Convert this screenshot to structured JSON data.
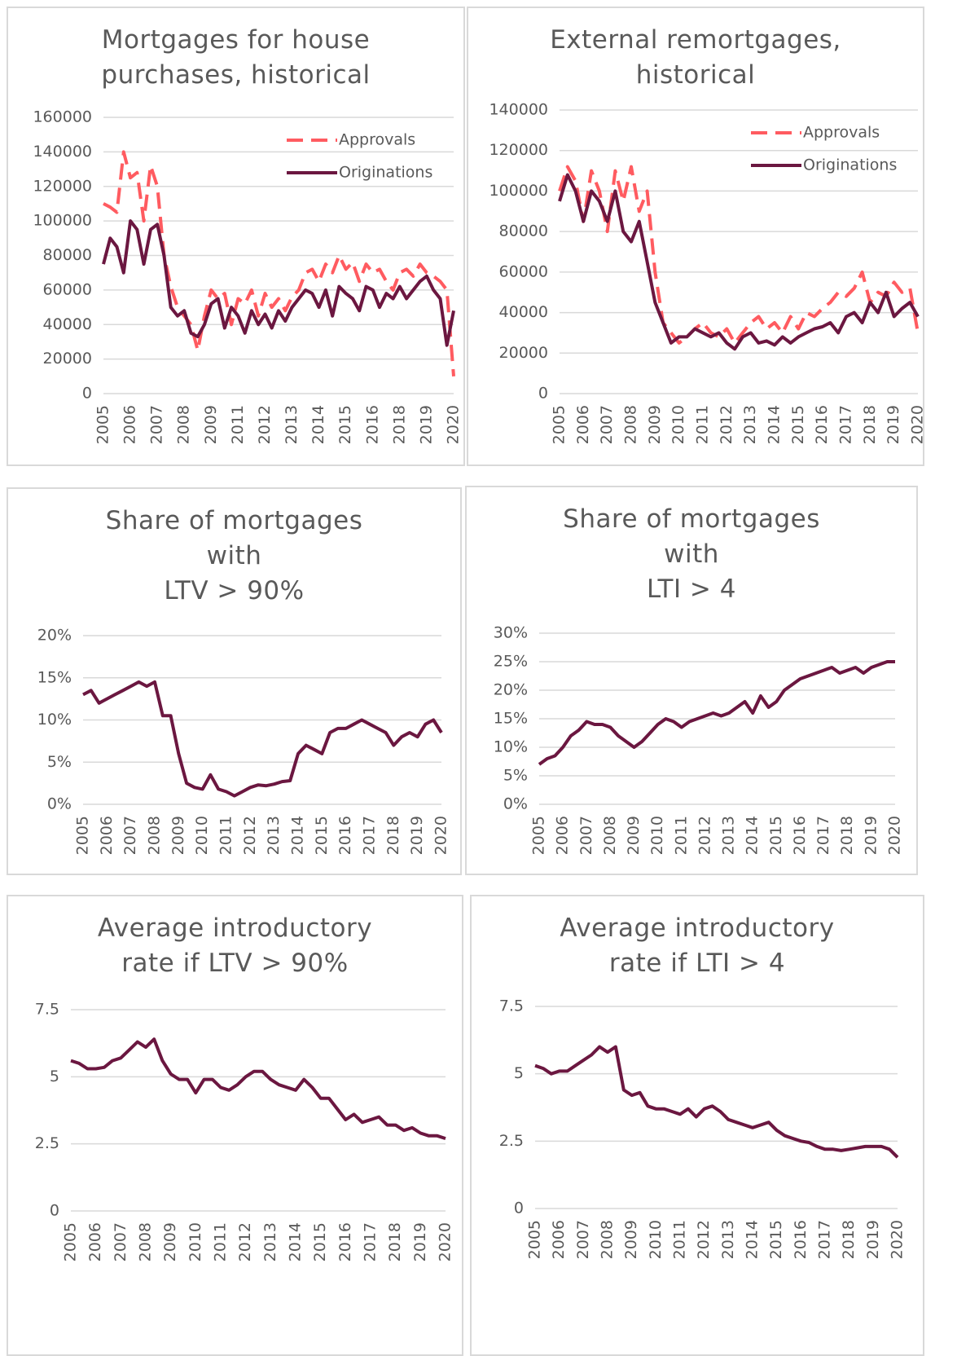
{
  "chart_data": [
    {
      "type": "line",
      "title": "Mortgages for house\npurchases, historical",
      "legend": "upper right",
      "categories": [
        "2005",
        null,
        null,
        null,
        "2006",
        null,
        null,
        null,
        "2007",
        null,
        null,
        null,
        "2008",
        null,
        null,
        null,
        "2009",
        null,
        null,
        null,
        "2011",
        null,
        null,
        null,
        "2012",
        null,
        null,
        null,
        "2013",
        null,
        null,
        null,
        "2014",
        null,
        null,
        null,
        "2015",
        null,
        null,
        null,
        "2016",
        null,
        null,
        null,
        "2018",
        null,
        null,
        null,
        "2019",
        null,
        null,
        null,
        "2020"
      ],
      "series": [
        {
          "name": "Approvals",
          "color": "#ff5b60",
          "line_style": "dashed",
          "values": [
            110000,
            108000,
            105000,
            140000,
            125000,
            128000,
            100000,
            132000,
            120000,
            80000,
            62000,
            50000,
            45000,
            40000,
            25000,
            45000,
            60000,
            55000,
            58000,
            40000,
            55000,
            52000,
            60000,
            45000,
            58000,
            50000,
            55000,
            48000,
            56000,
            60000,
            70000,
            72000,
            65000,
            75000,
            70000,
            80000,
            72000,
            76000,
            65000,
            75000,
            70000,
            72000,
            65000,
            60000,
            70000,
            72000,
            68000,
            75000,
            70000,
            68000,
            65000,
            60000,
            10000
          ]
        },
        {
          "name": "Originations",
          "color": "#6b1740",
          "line_style": "solid",
          "values": [
            75000,
            90000,
            85000,
            70000,
            100000,
            95000,
            75000,
            95000,
            98000,
            80000,
            50000,
            45000,
            48000,
            35000,
            33000,
            40000,
            52000,
            55000,
            38000,
            50000,
            45000,
            35000,
            48000,
            40000,
            46000,
            38000,
            48000,
            42000,
            50000,
            55000,
            60000,
            58000,
            50000,
            60000,
            45000,
            62000,
            58000,
            55000,
            48000,
            62000,
            60000,
            50000,
            58000,
            55000,
            62000,
            55000,
            60000,
            65000,
            68000,
            60000,
            55000,
            28000,
            48000
          ]
        }
      ],
      "ylim": [
        0,
        160000
      ],
      "yticks": [
        0,
        20000,
        40000,
        60000,
        80000,
        100000,
        120000,
        140000,
        160000
      ],
      "grid": true
    },
    {
      "type": "line",
      "title": "External remortgages,\nhistorical",
      "legend": "upper right",
      "categories": [
        "2005",
        null,
        null,
        "2006",
        null,
        null,
        "2007",
        null,
        null,
        "2008",
        null,
        null,
        "2009",
        null,
        null,
        "2010",
        null,
        null,
        "2011",
        null,
        null,
        "2012",
        null,
        null,
        "2013",
        null,
        null,
        "2014",
        null,
        null,
        "2015",
        null,
        null,
        "2016",
        null,
        null,
        "2017",
        null,
        null,
        "2018",
        null,
        null,
        "2019",
        null,
        null,
        "2020"
      ],
      "series": [
        {
          "name": "Approvals",
          "color": "#ff5b60",
          "line_style": "dashed",
          "values": [
            100000,
            112000,
            105000,
            85000,
            110000,
            100000,
            80000,
            110000,
            95000,
            112000,
            90000,
            100000,
            60000,
            35000,
            30000,
            25000,
            28000,
            32000,
            35000,
            30000,
            28000,
            32000,
            25000,
            30000,
            35000,
            38000,
            32000,
            35000,
            30000,
            38000,
            32000,
            40000,
            38000,
            42000,
            45000,
            50000,
            48000,
            52000,
            60000,
            45000,
            50000,
            48000,
            55000,
            50000,
            52000,
            30000
          ]
        },
        {
          "name": "Originations",
          "color": "#6b1740",
          "line_style": "solid",
          "values": [
            95000,
            108000,
            100000,
            85000,
            100000,
            95000,
            85000,
            100000,
            80000,
            75000,
            85000,
            65000,
            45000,
            35000,
            25000,
            28000,
            28000,
            32000,
            30000,
            28000,
            30000,
            25000,
            22000,
            28000,
            30000,
            25000,
            26000,
            24000,
            28000,
            25000,
            28000,
            30000,
            32000,
            33000,
            35000,
            30000,
            38000,
            40000,
            35000,
            45000,
            40000,
            50000,
            38000,
            42000,
            45000,
            38000
          ]
        }
      ],
      "ylim": [
        0,
        140000
      ],
      "yticks": [
        0,
        20000,
        40000,
        60000,
        80000,
        100000,
        120000,
        140000
      ],
      "grid": true
    },
    {
      "type": "line",
      "title": "Share of mortgages\nwith\nLTV > 90%",
      "categories": [
        "2005",
        null,
        null,
        "2006",
        null,
        null,
        "2007",
        null,
        null,
        "2008",
        null,
        null,
        "2009",
        null,
        null,
        "2010",
        null,
        null,
        "2011",
        null,
        null,
        "2012",
        null,
        null,
        "2013",
        null,
        null,
        "2014",
        null,
        null,
        "2015",
        null,
        null,
        "2016",
        null,
        null,
        "2017",
        null,
        null,
        "2018",
        null,
        null,
        "2019",
        null,
        null,
        "2020"
      ],
      "color": "#6b1740",
      "values": [
        13,
        13.5,
        12,
        12.5,
        13,
        13.5,
        14,
        14.5,
        14,
        14.5,
        10.5,
        10.5,
        6,
        2.5,
        2,
        1.8,
        3.5,
        1.8,
        1.5,
        1,
        1.5,
        2,
        2.3,
        2.2,
        2.4,
        2.7,
        2.8,
        6,
        7,
        6.5,
        6,
        8.5,
        9,
        9,
        9.5,
        10,
        9.5,
        9,
        8.5,
        7,
        8,
        8.5,
        8,
        9.5,
        10,
        8.5
      ],
      "ylim": [
        0,
        20
      ],
      "yticks": [
        {
          "value": 0,
          "label": "0%"
        },
        {
          "value": 5,
          "label": "5%"
        },
        {
          "value": 10,
          "label": "10%"
        },
        {
          "value": 15,
          "label": "15%"
        },
        {
          "value": 20,
          "label": "20%"
        }
      ],
      "grid": true
    },
    {
      "type": "line",
      "title": "Share of mortgages\nwith\nLTI > 4",
      "categories": [
        "2005",
        null,
        null,
        "2006",
        null,
        null,
        "2007",
        null,
        null,
        "2008",
        null,
        null,
        "2009",
        null,
        null,
        "2010",
        null,
        null,
        "2011",
        null,
        null,
        "2012",
        null,
        null,
        "2013",
        null,
        null,
        "2014",
        null,
        null,
        "2015",
        null,
        null,
        "2016",
        null,
        null,
        "2017",
        null,
        null,
        "2018",
        null,
        null,
        "2019",
        null,
        null,
        "2020"
      ],
      "color": "#6b1740",
      "values": [
        7,
        8,
        8.5,
        10,
        12,
        13,
        14.5,
        14,
        14,
        13.5,
        12,
        11,
        10,
        11,
        12.5,
        14,
        15,
        14.5,
        13.5,
        14.5,
        15,
        15.5,
        16,
        15.5,
        16,
        17,
        18,
        16,
        19,
        17,
        18,
        20,
        21,
        22,
        22.5,
        23,
        23.5,
        24,
        23,
        23.5,
        24,
        23,
        24,
        24.5,
        25,
        25
      ],
      "ylim": [
        0,
        30
      ],
      "yticks": [
        {
          "value": 0,
          "label": "0%"
        },
        {
          "value": 5,
          "label": "5%"
        },
        {
          "value": 10,
          "label": "10%"
        },
        {
          "value": 15,
          "label": "15%"
        },
        {
          "value": 20,
          "label": "20%"
        },
        {
          "value": 25,
          "label": "25%"
        },
        {
          "value": 30,
          "label": "30%"
        }
      ],
      "grid": true
    },
    {
      "type": "line",
      "title": "Average introductory\nrate if LTV > 90%",
      "categories": [
        "2005",
        null,
        null,
        "2006",
        null,
        null,
        "2007",
        null,
        null,
        "2008",
        null,
        null,
        "2009",
        null,
        null,
        "2010",
        null,
        null,
        "2011",
        null,
        null,
        "2012",
        null,
        null,
        "2013",
        null,
        null,
        "2014",
        null,
        null,
        "2015",
        null,
        null,
        "2016",
        null,
        null,
        "2017",
        null,
        null,
        "2018",
        null,
        null,
        "2019",
        null,
        null,
        "2020"
      ],
      "color": "#6b1740",
      "values": [
        5.6,
        5.5,
        5.3,
        5.3,
        5.35,
        5.6,
        5.7,
        6,
        6.3,
        6.1,
        6.4,
        5.6,
        5.1,
        4.9,
        4.9,
        4.4,
        4.9,
        4.9,
        4.6,
        4.5,
        4.7,
        5,
        5.2,
        5.2,
        4.9,
        4.7,
        4.6,
        4.5,
        4.9,
        4.6,
        4.2,
        4.2,
        3.8,
        3.4,
        3.6,
        3.3,
        3.4,
        3.5,
        3.2,
        3.2,
        3,
        3.1,
        2.9,
        2.8,
        2.8,
        2.7
      ],
      "ylim": [
        0,
        7.5
      ],
      "yticks": [
        0,
        2.5,
        5,
        7.5
      ],
      "grid": true
    },
    {
      "type": "line",
      "title": "Average introductory\nrate if LTI > 4",
      "categories": [
        "2005",
        null,
        null,
        "2006",
        null,
        null,
        "2007",
        null,
        null,
        "2008",
        null,
        null,
        "2009",
        null,
        null,
        "2010",
        null,
        null,
        "2011",
        null,
        null,
        "2012",
        null,
        null,
        "2013",
        null,
        null,
        "2014",
        null,
        null,
        "2015",
        null,
        null,
        "2016",
        null,
        null,
        "2017",
        null,
        null,
        "2018",
        null,
        null,
        "2019",
        null,
        null,
        "2020"
      ],
      "color": "#6b1740",
      "values": [
        5.3,
        5.2,
        5,
        5.1,
        5.1,
        5.3,
        5.5,
        5.7,
        6,
        5.8,
        6,
        4.4,
        4.2,
        4.3,
        3.8,
        3.7,
        3.7,
        3.6,
        3.5,
        3.7,
        3.4,
        3.7,
        3.8,
        3.6,
        3.3,
        3.2,
        3.1,
        3,
        3.1,
        3.2,
        2.9,
        2.7,
        2.6,
        2.5,
        2.45,
        2.3,
        2.2,
        2.2,
        2.15,
        2.2,
        2.25,
        2.3,
        2.3,
        2.3,
        2.2,
        1.9
      ],
      "ylim": [
        0,
        7.5
      ],
      "yticks": [
        0,
        2.5,
        5,
        7.5
      ],
      "grid": true
    }
  ]
}
